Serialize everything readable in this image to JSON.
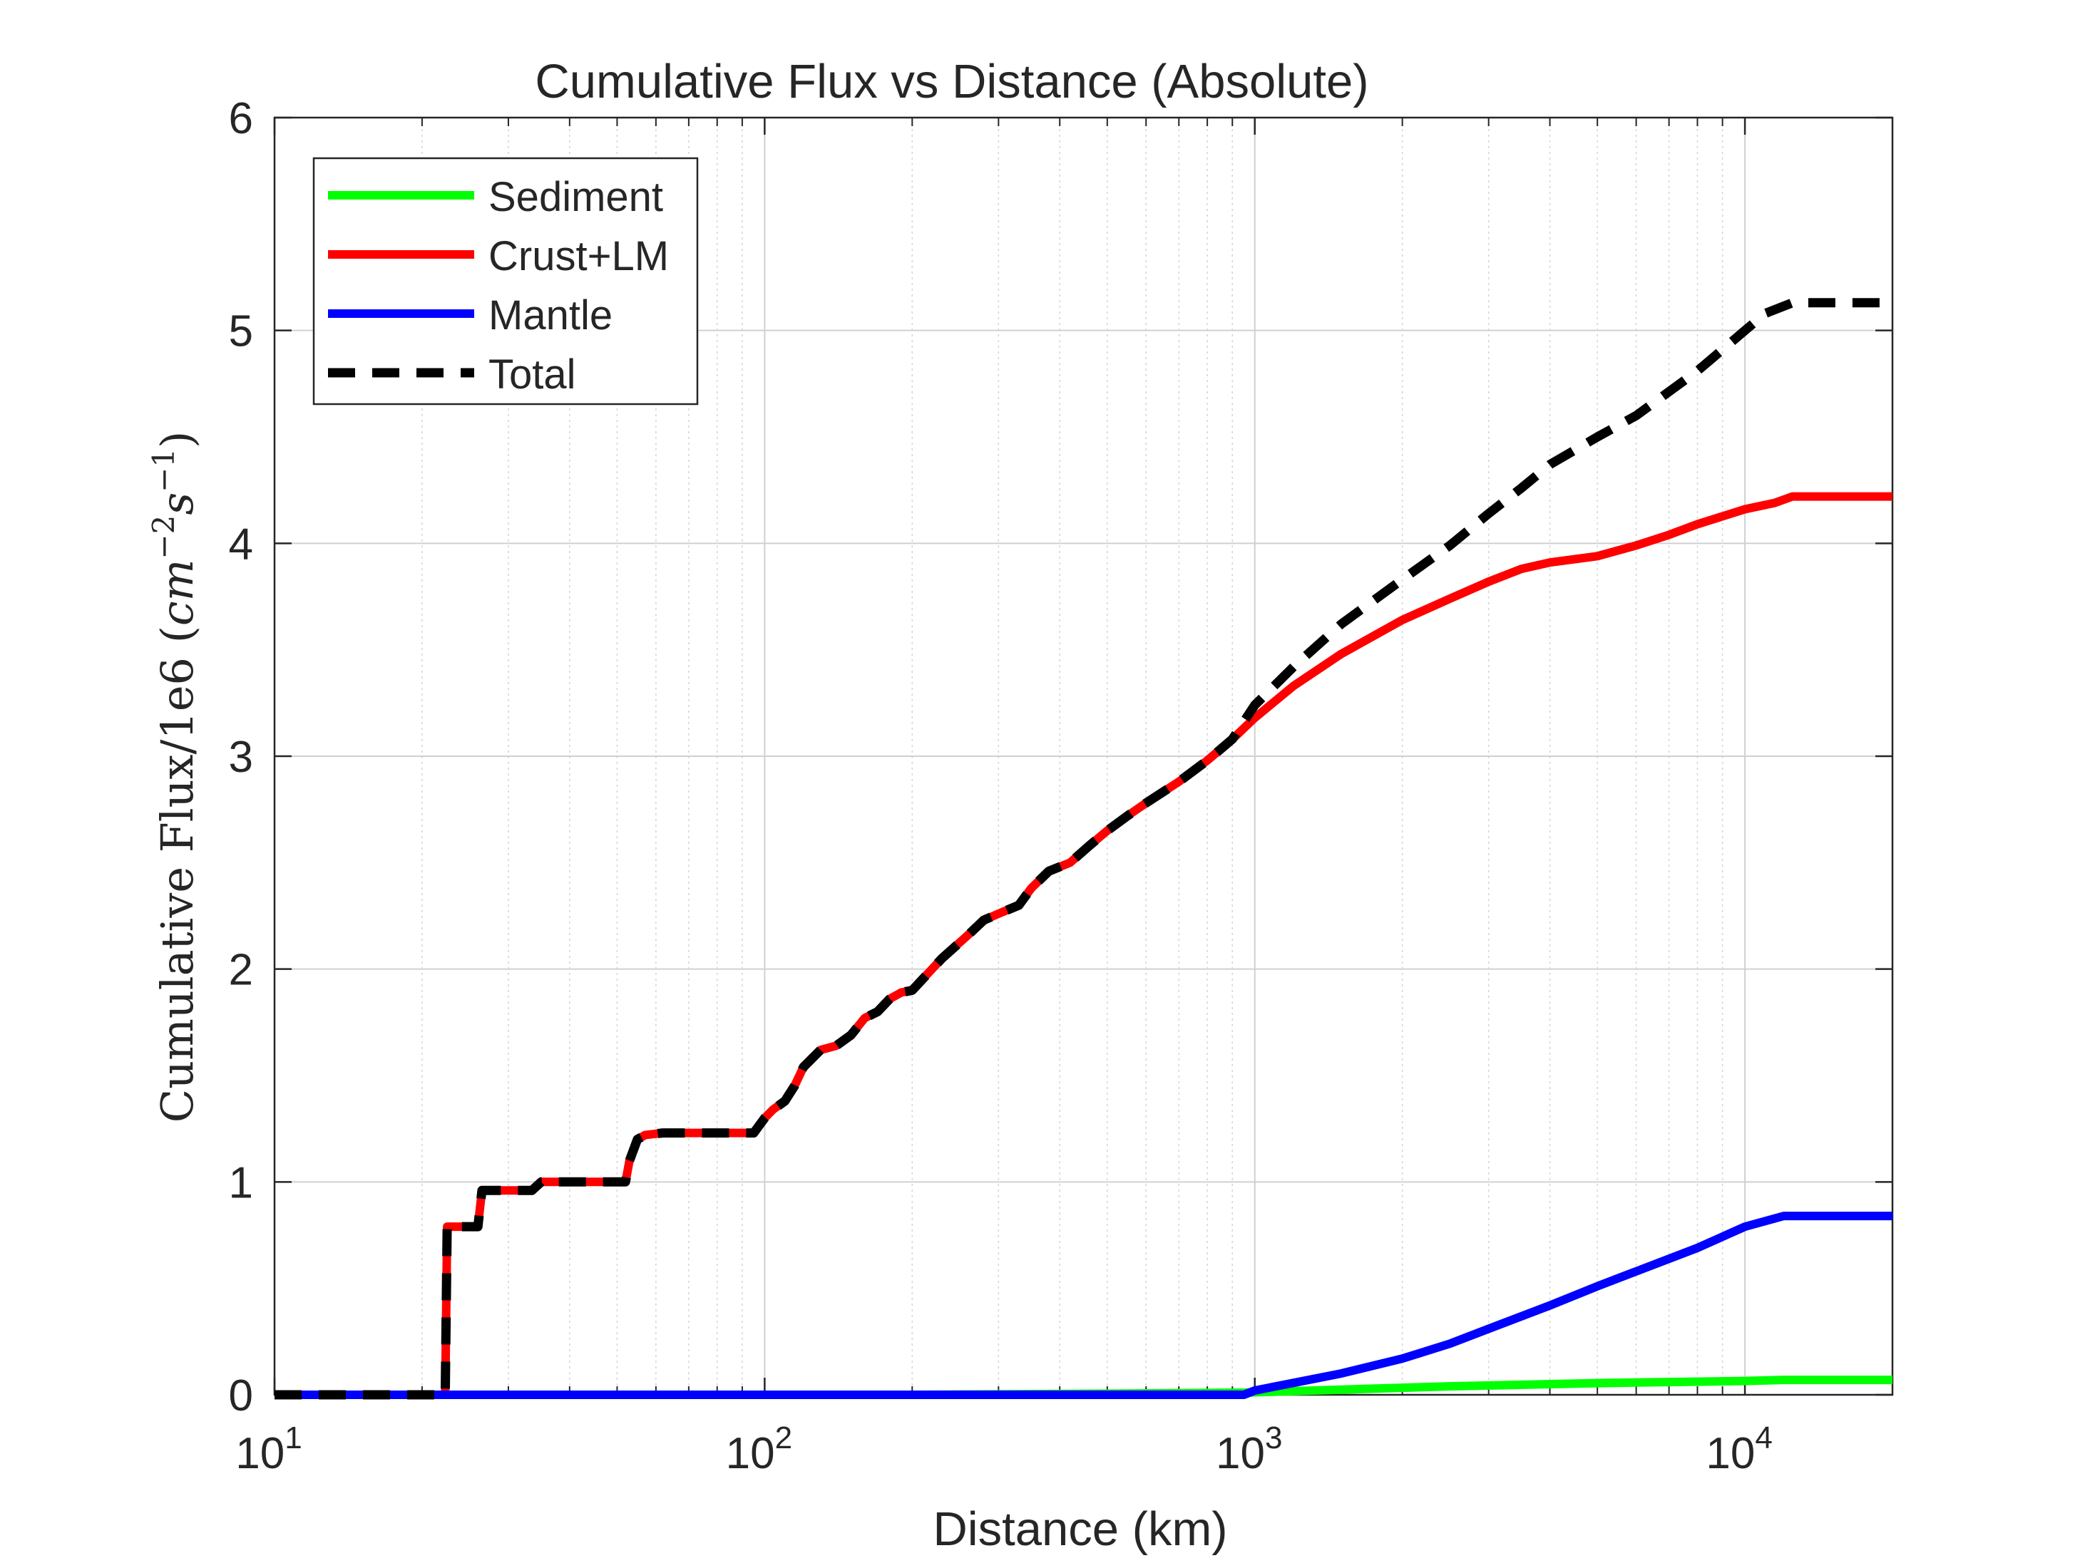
{
  "chart_data": {
    "type": "line",
    "title": "Cumulative Flux vs Distance (Absolute)",
    "xlabel": "Distance (km)",
    "ylabel": {
      "main": "Cumulative Flux/1e6 (",
      "unit_cm": "cm",
      "exp_cm": "−2",
      "unit_s": "s",
      "exp_s": "−1",
      "close": ")"
    },
    "xscale": "log",
    "xlim": [
      10,
      20000
    ],
    "ylim": [
      0,
      6
    ],
    "grid": true,
    "legend_position": "top-left",
    "x_ticks": [
      {
        "value": 10,
        "base": "10",
        "exp": "1"
      },
      {
        "value": 100,
        "base": "10",
        "exp": "2"
      },
      {
        "value": 1000,
        "base": "10",
        "exp": "3"
      },
      {
        "value": 10000,
        "base": "10",
        "exp": "4"
      }
    ],
    "y_ticks": [
      "0",
      "1",
      "2",
      "3",
      "4",
      "5",
      "6"
    ],
    "series": [
      {
        "name": "Sediment",
        "color": "#00ff00",
        "dash": "solid",
        "points": [
          [
            10,
            0
          ],
          [
            100,
            0
          ],
          [
            200,
            0
          ],
          [
            500,
            0.005
          ],
          [
            950,
            0.01
          ],
          [
            2500,
            0.04
          ],
          [
            5000,
            0.055
          ],
          [
            10000,
            0.065
          ],
          [
            12000,
            0.07
          ],
          [
            20000,
            0.07
          ]
        ]
      },
      {
        "name": "Crust+LM",
        "color": "#ff0000",
        "dash": "solid",
        "points": [
          [
            10,
            0
          ],
          [
            22.3,
            0
          ],
          [
            22.5,
            0.79
          ],
          [
            26,
            0.79
          ],
          [
            26.5,
            0.96
          ],
          [
            33.5,
            0.96
          ],
          [
            35,
            1.0
          ],
          [
            52,
            1.0
          ],
          [
            53,
            1.1
          ],
          [
            55,
            1.2
          ],
          [
            57,
            1.22
          ],
          [
            62,
            1.23
          ],
          [
            95,
            1.23
          ],
          [
            100,
            1.3
          ],
          [
            104,
            1.34
          ],
          [
            110,
            1.38
          ],
          [
            115,
            1.45
          ],
          [
            120,
            1.54
          ],
          [
            130,
            1.62
          ],
          [
            140,
            1.64
          ],
          [
            150,
            1.69
          ],
          [
            160,
            1.77
          ],
          [
            170,
            1.8
          ],
          [
            180,
            1.86
          ],
          [
            190,
            1.89
          ],
          [
            200,
            1.9
          ],
          [
            230,
            2.05
          ],
          [
            260,
            2.16
          ],
          [
            280,
            2.23
          ],
          [
            300,
            2.26
          ],
          [
            330,
            2.3
          ],
          [
            350,
            2.38
          ],
          [
            380,
            2.46
          ],
          [
            420,
            2.5
          ],
          [
            460,
            2.58
          ],
          [
            500,
            2.65
          ],
          [
            550,
            2.72
          ],
          [
            600,
            2.78
          ],
          [
            700,
            2.88
          ],
          [
            800,
            2.98
          ],
          [
            900,
            3.08
          ],
          [
            1000,
            3.18
          ],
          [
            1200,
            3.33
          ],
          [
            1500,
            3.48
          ],
          [
            2000,
            3.64
          ],
          [
            2500,
            3.74
          ],
          [
            3000,
            3.82
          ],
          [
            3500,
            3.88
          ],
          [
            4000,
            3.91
          ],
          [
            5000,
            3.94
          ],
          [
            6000,
            3.99
          ],
          [
            7000,
            4.04
          ],
          [
            8000,
            4.09
          ],
          [
            10000,
            4.16
          ],
          [
            11500,
            4.19
          ],
          [
            12500,
            4.22
          ],
          [
            20000,
            4.22
          ]
        ]
      },
      {
        "name": "Mantle",
        "color": "#0000ff",
        "dash": "solid",
        "points": [
          [
            10,
            0
          ],
          [
            100,
            0
          ],
          [
            500,
            0
          ],
          [
            950,
            0
          ],
          [
            1000,
            0.02
          ],
          [
            1500,
            0.1
          ],
          [
            2000,
            0.17
          ],
          [
            2500,
            0.24
          ],
          [
            3000,
            0.31
          ],
          [
            4000,
            0.42
          ],
          [
            5000,
            0.51
          ],
          [
            6000,
            0.58
          ],
          [
            8000,
            0.69
          ],
          [
            10000,
            0.79
          ],
          [
            12000,
            0.84
          ],
          [
            20000,
            0.84
          ]
        ]
      },
      {
        "name": "Total",
        "color": "#000000",
        "dash": "dashed",
        "points": [
          [
            10,
            0
          ],
          [
            22.3,
            0
          ],
          [
            22.5,
            0.79
          ],
          [
            26,
            0.79
          ],
          [
            26.5,
            0.96
          ],
          [
            33.5,
            0.96
          ],
          [
            35,
            1.0
          ],
          [
            52,
            1.0
          ],
          [
            53,
            1.1
          ],
          [
            55,
            1.2
          ],
          [
            57,
            1.22
          ],
          [
            62,
            1.23
          ],
          [
            95,
            1.23
          ],
          [
            100,
            1.3
          ],
          [
            104,
            1.34
          ],
          [
            110,
            1.38
          ],
          [
            115,
            1.45
          ],
          [
            120,
            1.54
          ],
          [
            130,
            1.62
          ],
          [
            140,
            1.64
          ],
          [
            150,
            1.69
          ],
          [
            160,
            1.77
          ],
          [
            170,
            1.8
          ],
          [
            180,
            1.86
          ],
          [
            190,
            1.89
          ],
          [
            200,
            1.9
          ],
          [
            230,
            2.05
          ],
          [
            260,
            2.16
          ],
          [
            280,
            2.23
          ],
          [
            300,
            2.26
          ],
          [
            330,
            2.3
          ],
          [
            350,
            2.38
          ],
          [
            380,
            2.46
          ],
          [
            420,
            2.5
          ],
          [
            460,
            2.58
          ],
          [
            500,
            2.65
          ],
          [
            550,
            2.72
          ],
          [
            600,
            2.78
          ],
          [
            700,
            2.88
          ],
          [
            800,
            2.98
          ],
          [
            900,
            3.08
          ],
          [
            1000,
            3.24
          ],
          [
            1200,
            3.42
          ],
          [
            1500,
            3.62
          ],
          [
            2000,
            3.83
          ],
          [
            2500,
            3.99
          ],
          [
            3000,
            4.14
          ],
          [
            3500,
            4.26
          ],
          [
            4000,
            4.37
          ],
          [
            5000,
            4.5
          ],
          [
            6000,
            4.6
          ],
          [
            8000,
            4.81
          ],
          [
            10000,
            5.0
          ],
          [
            11000,
            5.08
          ],
          [
            12500,
            5.13
          ],
          [
            20000,
            5.13
          ]
        ]
      }
    ]
  }
}
